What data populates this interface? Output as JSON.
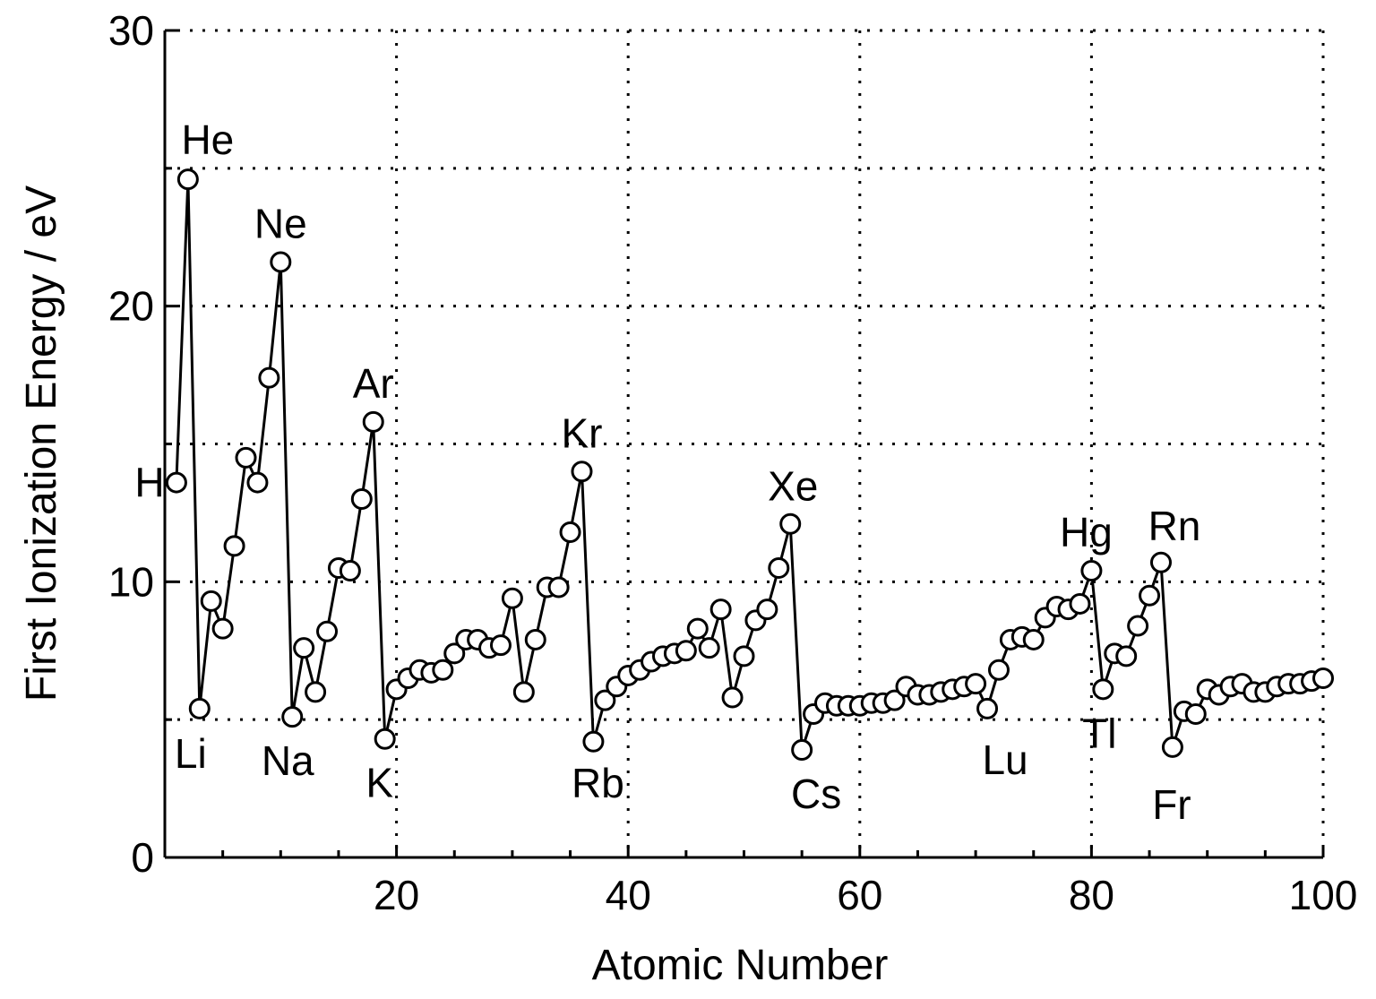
{
  "chart_data": {
    "type": "line",
    "title": "",
    "xlabel": "Atomic Number",
    "ylabel": "First Ionization Energy / eV",
    "xlim": [
      0,
      100
    ],
    "ylim": [
      0,
      30
    ],
    "xticks": [
      20,
      40,
      60,
      80,
      100
    ],
    "yticks": [
      0,
      10,
      20,
      30
    ],
    "grid": true,
    "x": [
      1,
      2,
      3,
      4,
      5,
      6,
      7,
      8,
      9,
      10,
      11,
      12,
      13,
      14,
      15,
      16,
      17,
      18,
      19,
      20,
      21,
      22,
      23,
      24,
      25,
      26,
      27,
      28,
      29,
      30,
      31,
      32,
      33,
      34,
      35,
      36,
      37,
      38,
      39,
      40,
      41,
      42,
      43,
      44,
      45,
      46,
      47,
      48,
      49,
      50,
      51,
      52,
      53,
      54,
      55,
      56,
      57,
      58,
      59,
      60,
      61,
      62,
      63,
      64,
      65,
      66,
      67,
      68,
      69,
      70,
      71,
      72,
      73,
      74,
      75,
      76,
      77,
      78,
      79,
      80,
      81,
      82,
      83,
      84,
      85,
      86,
      87,
      88,
      89,
      90,
      91,
      92,
      93,
      94,
      95,
      96,
      97,
      98,
      99,
      100
    ],
    "y": [
      13.6,
      24.6,
      5.4,
      9.3,
      8.3,
      11.3,
      14.5,
      13.6,
      17.4,
      21.6,
      5.1,
      7.6,
      6.0,
      8.2,
      10.5,
      10.4,
      13.0,
      15.8,
      4.3,
      6.1,
      6.5,
      6.8,
      6.7,
      6.8,
      7.4,
      7.9,
      7.9,
      7.6,
      7.7,
      9.4,
      6.0,
      7.9,
      9.8,
      9.8,
      11.8,
      14.0,
      4.2,
      5.7,
      6.2,
      6.6,
      6.8,
      7.1,
      7.3,
      7.4,
      7.5,
      8.3,
      7.6,
      9.0,
      5.8,
      7.3,
      8.6,
      9.0,
      10.5,
      12.1,
      3.9,
      5.2,
      5.6,
      5.5,
      5.5,
      5.5,
      5.6,
      5.6,
      5.7,
      6.2,
      5.9,
      5.9,
      6.0,
      6.1,
      6.2,
      6.3,
      5.4,
      6.8,
      7.9,
      8.0,
      7.9,
      8.7,
      9.1,
      9.0,
      9.2,
      10.4,
      6.1,
      7.4,
      7.3,
      8.4,
      9.5,
      10.7,
      4.0,
      5.3,
      5.2,
      6.1,
      5.9,
      6.2,
      6.3,
      6.0,
      6.0,
      6.2,
      6.3,
      6.3,
      6.4,
      6.5
    ],
    "labels": [
      {
        "text": "H",
        "z": 1
      },
      {
        "text": "He",
        "z": 2
      },
      {
        "text": "Li",
        "z": 3
      },
      {
        "text": "Ne",
        "z": 10
      },
      {
        "text": "Na",
        "z": 11
      },
      {
        "text": "Ar",
        "z": 18
      },
      {
        "text": "K",
        "z": 19
      },
      {
        "text": "Kr",
        "z": 36
      },
      {
        "text": "Rb",
        "z": 37
      },
      {
        "text": "Xe",
        "z": 54
      },
      {
        "text": "Cs",
        "z": 55
      },
      {
        "text": "Lu",
        "z": 71
      },
      {
        "text": "Hg",
        "z": 80
      },
      {
        "text": "Tl",
        "z": 81
      },
      {
        "text": "Rn",
        "z": 86
      },
      {
        "text": "Fr",
        "z": 87
      }
    ]
  }
}
